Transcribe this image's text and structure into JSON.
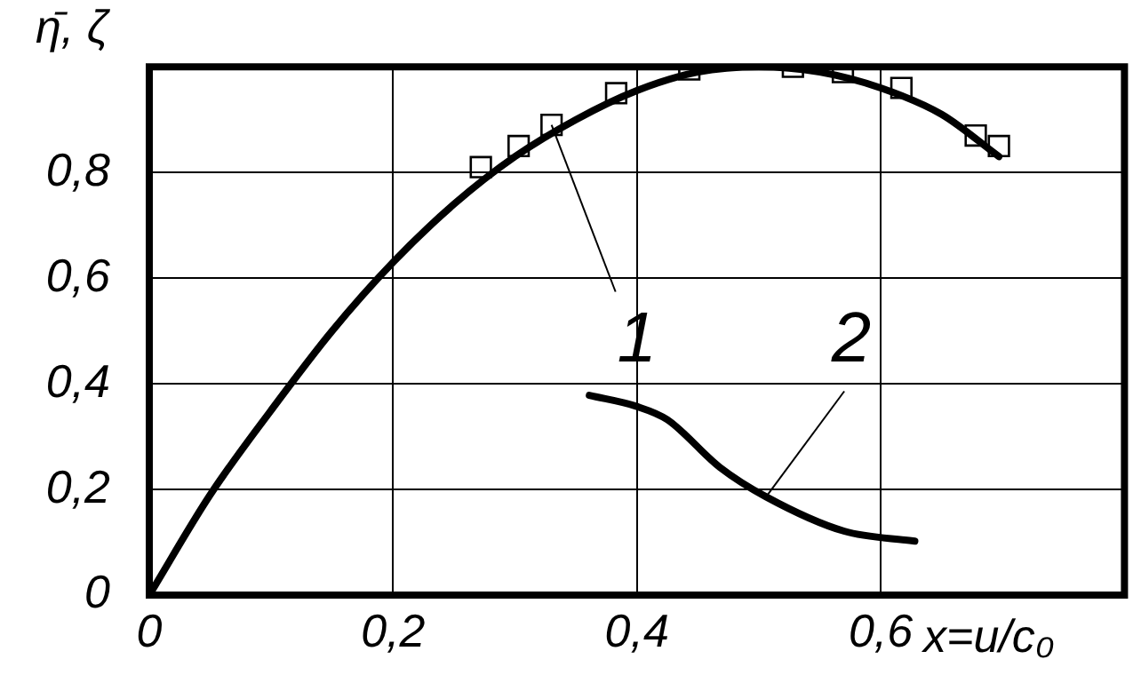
{
  "chart_data": {
    "type": "line",
    "xlabel": "x=u/c₀",
    "ylabel": "η̄, ζ",
    "xlim": [
      0,
      0.8
    ],
    "ylim": [
      0,
      1
    ],
    "xticks": [
      0,
      {
        "value": 0.2,
        "label": "0,2"
      },
      {
        "value": 0.4,
        "label": "0,4"
      },
      {
        "value": 0.6,
        "label": "0,6"
      }
    ],
    "yticks": [
      0,
      {
        "value": 0.2,
        "label": "0,2"
      },
      {
        "value": 0.4,
        "label": "0,4"
      },
      {
        "value": 0.6,
        "label": "0,6"
      },
      {
        "value": 0.8,
        "label": "0,8"
      }
    ],
    "grid": true,
    "legend": false,
    "series": [
      {
        "type": "scatter",
        "marker": "square",
        "color": "#000000",
        "x": [
          0.272,
          0.303,
          0.33,
          0.383,
          0.443,
          0.528,
          0.569,
          0.617,
          0.678,
          0.697
        ],
        "values": [
          0.81,
          0.85,
          0.89,
          0.95,
          0.995,
          1.0,
          0.99,
          0.96,
          0.87,
          0.85
        ]
      },
      {
        "type": "line",
        "marker": "none",
        "color": "#000000",
        "x": [
          0,
          0.05,
          0.1,
          0.15,
          0.2,
          0.25,
          0.3,
          0.35,
          0.4,
          0.45,
          0.5,
          0.55,
          0.6,
          0.65,
          0.697
        ],
        "values": [
          0,
          0.19,
          0.35,
          0.5,
          0.63,
          0.74,
          0.83,
          0.9,
          0.955,
          0.99,
          1.0,
          0.99,
          0.96,
          0.91,
          0.83
        ]
      },
      {
        "type": "line",
        "marker": "none",
        "color": "#000000",
        "x": [
          0.361,
          0.4,
          0.425,
          0.468,
          0.506,
          0.57,
          0.628
        ],
        "values": [
          0.378,
          0.357,
          0.332,
          0.242,
          0.186,
          0.121,
          0.102
        ]
      }
    ],
    "annotations": [
      {
        "text": "1",
        "x": 0.33,
        "y": 0.89
      },
      {
        "text": "2",
        "x": 0.506,
        "y": 0.186
      }
    ]
  }
}
